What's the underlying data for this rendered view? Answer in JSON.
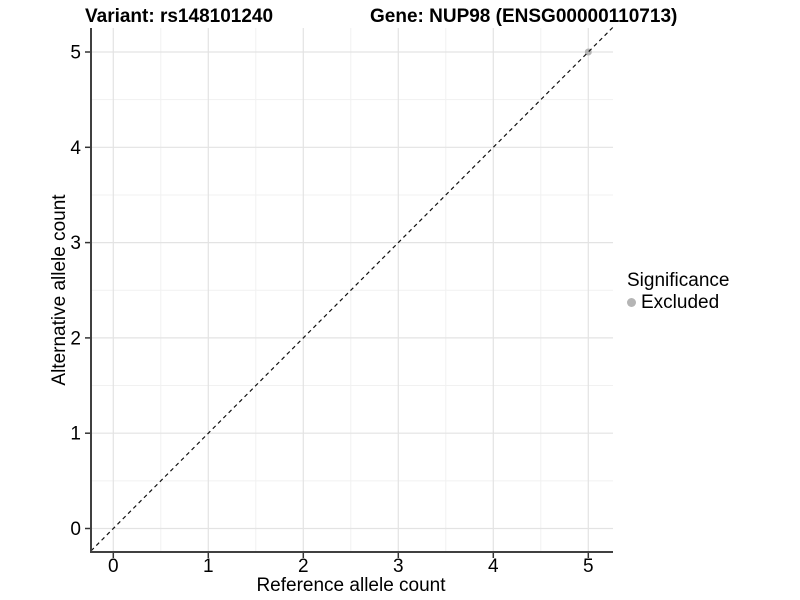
{
  "header": {
    "variant_title": "Variant: rs148101240",
    "gene_title": "Gene: NUP98 (ENSG00000110713)"
  },
  "legend": {
    "title": "Significance",
    "items": [
      {
        "label": "Excluded",
        "color": "#b5b5b5"
      }
    ]
  },
  "chart_data": {
    "type": "scatter",
    "title": "",
    "xlabel": "Reference allele count",
    "ylabel": "Alternative allele count",
    "xlim": [
      -0.25,
      5.25
    ],
    "ylim": [
      -0.25,
      5.25
    ],
    "x_ticks": [
      0,
      1,
      2,
      3,
      4,
      5
    ],
    "y_ticks": [
      0,
      1,
      2,
      3,
      4,
      5
    ],
    "grid": {
      "major": true,
      "minor": true,
      "major_color": "#e3e3e3",
      "minor_color": "#f1f1f1"
    },
    "legend_position": "right",
    "series": [
      {
        "name": "Excluded",
        "color": "#b5b5b5",
        "points": [
          {
            "x": 5,
            "y": 5
          }
        ]
      }
    ],
    "reference_line": {
      "type": "identity",
      "style": "dashed",
      "color": "#111111"
    },
    "colors": {
      "axis_line": "#404040",
      "tick_mark": "#333333",
      "text": "#000000",
      "panel_background": "#ffffff"
    }
  }
}
